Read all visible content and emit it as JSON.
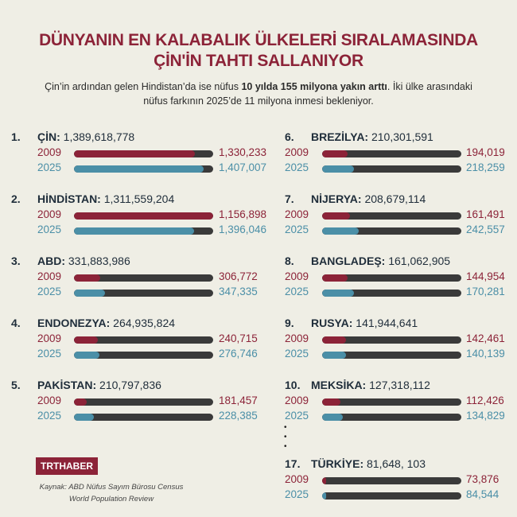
{
  "header": {
    "title_line1": "DÜNYANIN EN KALABALIK ÜLKELERİ SIRALAMASINDA",
    "title_line2": "ÇİN'İN TAHTI SALLANIYOR",
    "subtitle_pre": "Çin’in ardından gelen Hindistan’da ise nüfus ",
    "subtitle_bold": "10 yılda 155 milyona yakın arttı",
    "subtitle_post": ". İki ülke arasındaki nüfus farkının 2025’de 11 milyona inmesi bekleniyor."
  },
  "colors": {
    "red": "#8c2338",
    "blue": "#4b8fa7",
    "track": "#3a3a3a"
  },
  "chart_data": {
    "type": "bar",
    "title": "Dünyanın en kalabalık ülkeleri",
    "series_labels": [
      "2009",
      "2025"
    ],
    "entries": [
      {
        "rank": "1.",
        "name": "ÇİN:",
        "population": "1,389,618,778",
        "v2009": "1,330,233",
        "v2025": "1,407,007",
        "fill2009": 0.87,
        "fill2025": 0.93
      },
      {
        "rank": "2.",
        "name": "HİNDİSTAN:",
        "population": "1,311,559,204",
        "v2009": "1,156,898",
        "v2025": "1,396,046",
        "fill2009": 1.0,
        "fill2025": 0.86
      },
      {
        "rank": "3.",
        "name": "ABD:",
        "population": "331,883,986",
        "v2009": "306,772",
        "v2025": "347,335",
        "fill2009": 0.19,
        "fill2025": 0.22
      },
      {
        "rank": "4.",
        "name": "ENDONEZYA:",
        "population": "264,935,824",
        "v2009": "240,715",
        "v2025": "276,746",
        "fill2009": 0.17,
        "fill2025": 0.18
      },
      {
        "rank": "5.",
        "name": "PAKİSTAN:",
        "population": "210,797,836",
        "v2009": "181,457",
        "v2025": "228,385",
        "fill2009": 0.09,
        "fill2025": 0.14
      },
      {
        "rank": "6.",
        "name": "BREZİLYA:",
        "population": "210,301,591",
        "v2009": "194,019",
        "v2025": "218,259",
        "fill2009": 0.18,
        "fill2025": 0.23
      },
      {
        "rank": "7.",
        "name": "NİJERYA:",
        "population": "208,679,114",
        "v2009": "161,491",
        "v2025": "242,557",
        "fill2009": 0.2,
        "fill2025": 0.26
      },
      {
        "rank": "8.",
        "name": "BANGLADEŞ:",
        "population": "161,062,905",
        "v2009": "144,954",
        "v2025": "170,281",
        "fill2009": 0.18,
        "fill2025": 0.23
      },
      {
        "rank": "9.",
        "name": "RUSYA:",
        "population": "141,944,641",
        "v2009": "142,461",
        "v2025": "140,139",
        "fill2009": 0.17,
        "fill2025": 0.17
      },
      {
        "rank": "10.",
        "name": "MEKSİKA:",
        "population": "127,318,112",
        "v2009": "112,426",
        "v2025": "134,829",
        "fill2009": 0.13,
        "fill2025": 0.15
      },
      {
        "rank": "17.",
        "name": "TÜRKİYE:",
        "population": "81,648, 103",
        "v2009": "73,876",
        "v2025": "84,544",
        "fill2009": 0.01,
        "fill2025": 0.02
      }
    ]
  },
  "footer": {
    "logo": "TRTHABER",
    "source_line1": "Kaynak: ABD Nüfus Sayım Bürosu Census",
    "source_line2": "World Population Review",
    "dots": "•\n•\n•"
  }
}
